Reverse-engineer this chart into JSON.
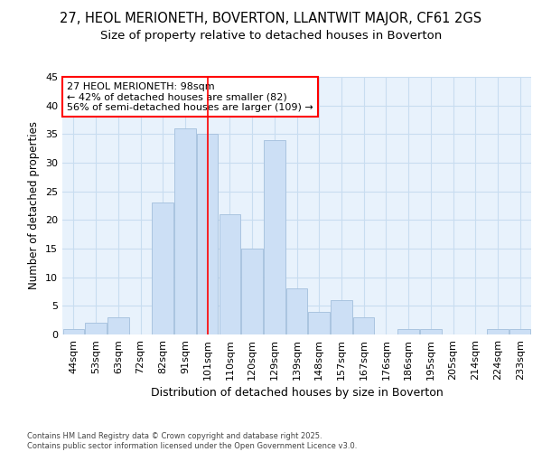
{
  "title1": "27, HEOL MERIONETH, BOVERTON, LLANTWIT MAJOR, CF61 2GS",
  "title2": "Size of property relative to detached houses in Boverton",
  "xlabel": "Distribution of detached houses by size in Boverton",
  "ylabel": "Number of detached properties",
  "categories": [
    "44sqm",
    "53sqm",
    "63sqm",
    "72sqm",
    "82sqm",
    "91sqm",
    "101sqm",
    "110sqm",
    "120sqm",
    "129sqm",
    "139sqm",
    "148sqm",
    "157sqm",
    "167sqm",
    "176sqm",
    "186sqm",
    "195sqm",
    "205sqm",
    "214sqm",
    "224sqm",
    "233sqm"
  ],
  "values": [
    1,
    2,
    3,
    0,
    23,
    36,
    35,
    21,
    15,
    34,
    8,
    4,
    6,
    3,
    0,
    1,
    1,
    0,
    0,
    1,
    1
  ],
  "bar_color": "#ccdff5",
  "bar_edge_color": "#aac4e0",
  "vline_position": 6.0,
  "annotation_text": "27 HEOL MERIONETH: 98sqm\n← 42% of detached houses are smaller (82)\n56% of semi-detached houses are larger (109) →",
  "annotation_box_color": "white",
  "annotation_box_edge_color": "red",
  "ylim": [
    0,
    45
  ],
  "yticks": [
    0,
    5,
    10,
    15,
    20,
    25,
    30,
    35,
    40,
    45
  ],
  "bg_color": "#ffffff",
  "plot_bg_color": "#e8f2fc",
  "grid_color": "#c8ddf0",
  "footer": "Contains HM Land Registry data © Crown copyright and database right 2025.\nContains public sector information licensed under the Open Government Licence v3.0.",
  "title1_fontsize": 10.5,
  "title2_fontsize": 9.5,
  "tick_fontsize": 8,
  "ylabel_fontsize": 8.5,
  "xlabel_fontsize": 9,
  "annot_fontsize": 8,
  "footer_fontsize": 6
}
